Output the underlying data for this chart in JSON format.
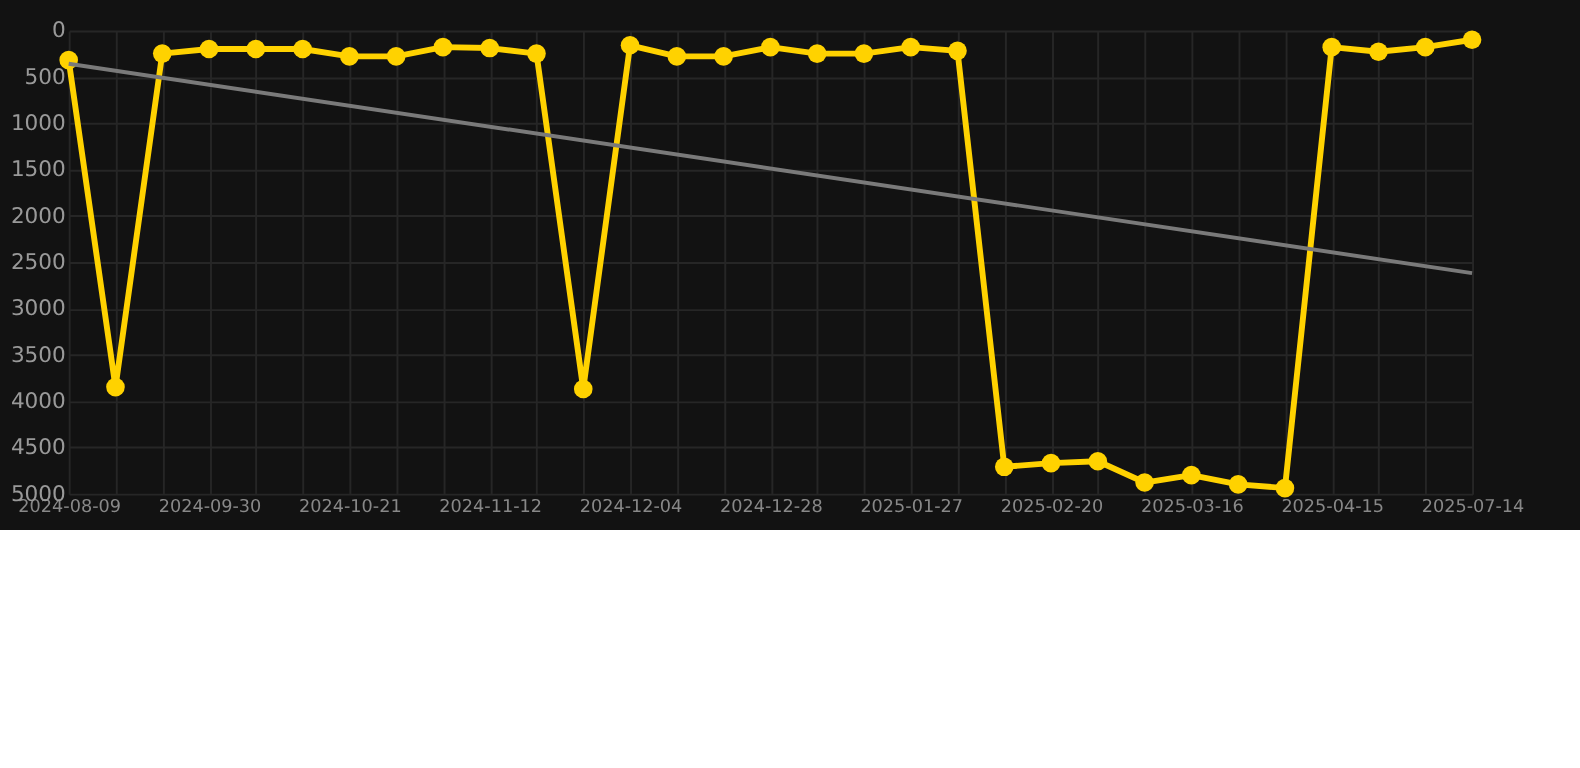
{
  "chart_data": {
    "type": "line",
    "categories": [
      "2024-08-09",
      null,
      null,
      "2024-09-30",
      null,
      null,
      "2024-10-21",
      null,
      null,
      "2024-11-12",
      null,
      null,
      "2024-12-04",
      null,
      null,
      "2024-12-28",
      null,
      null,
      "2025-01-27",
      null,
      null,
      "2025-02-20",
      null,
      null,
      "2025-03-16",
      null,
      null,
      "2025-04-15",
      null,
      null,
      "2025-07-14"
    ],
    "series": [
      {
        "color": "#ffd200",
        "marker": "circle",
        "values": [
          320,
          3850,
          250,
          200,
          200,
          200,
          280,
          280,
          180,
          190,
          250,
          3870,
          160,
          280,
          280,
          180,
          250,
          250,
          180,
          220,
          4710,
          4670,
          4650,
          4880,
          4800,
          4900,
          4940,
          180,
          230,
          180,
          100
        ]
      },
      {
        "type": "line",
        "color": "#7a7a7a",
        "marker": "none",
        "values": [
          360,
          null,
          null,
          null,
          null,
          null,
          null,
          null,
          null,
          null,
          null,
          null,
          null,
          null,
          null,
          null,
          null,
          null,
          null,
          null,
          null,
          null,
          null,
          null,
          null,
          null,
          null,
          null,
          null,
          null,
          2620
        ]
      }
    ],
    "ylim": [
      5000,
      0
    ],
    "yticks": [
      0,
      500,
      1000,
      1500,
      2000,
      2500,
      3000,
      3500,
      4000,
      4500,
      5000
    ],
    "grid": true
  }
}
